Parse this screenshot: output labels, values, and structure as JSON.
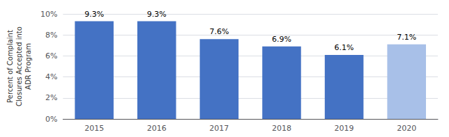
{
  "chart_data": {
    "type": "bar",
    "categories": [
      "2015",
      "2016",
      "2017",
      "2018",
      "2019",
      "2020"
    ],
    "values": [
      9.3,
      9.3,
      7.6,
      6.9,
      6.1,
      7.1
    ],
    "value_labels": [
      "9.3%",
      "9.3%",
      "7.6%",
      "6.9%",
      "6.1%",
      "7.1%"
    ],
    "colors": [
      "#4472C4",
      "#4472C4",
      "#4472C4",
      "#4472C4",
      "#4472C4",
      "#a8c0e8"
    ],
    "ylabel": "Percent of Complaint\nClosures Accepted into\nADR Program",
    "ylim": [
      0,
      10
    ],
    "yticks": [
      {
        "value": 0,
        "label": "0%"
      },
      {
        "value": 2,
        "label": "2%"
      },
      {
        "value": 4,
        "label": "4%"
      },
      {
        "value": 6,
        "label": "6%"
      },
      {
        "value": 8,
        "label": "8%"
      },
      {
        "value": 10,
        "label": "10%"
      }
    ],
    "data_labels": true,
    "grid": true
  }
}
